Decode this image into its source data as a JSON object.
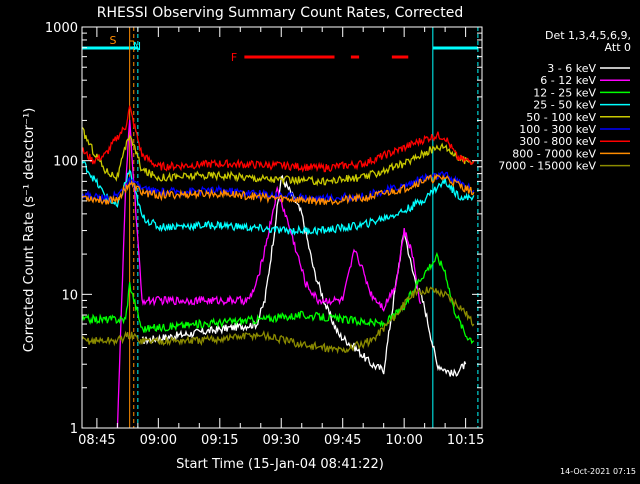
{
  "chart_data": {
    "type": "line",
    "title": "RHESSI Observing Summary Count Rates, Corrected",
    "xlabel": "Start Time (15-Jan-04 08:41:22)",
    "ylabel": "Corrected Count Rate (s⁻¹ detector⁻¹)",
    "y_scale": "log",
    "ylim": [
      1,
      1000
    ],
    "xlim": [
      "08:41:22",
      "10:19:00"
    ],
    "x_tick_labels": [
      "08:45",
      "09:00",
      "09:15",
      "09:30",
      "09:45",
      "10:00",
      "10:15"
    ],
    "y_tick_labels": [
      "1",
      "10",
      "100",
      "1000"
    ],
    "legend_header": [
      "Det 1,3,4,5,6,9,",
      "Att 0"
    ],
    "legend_position": "right",
    "footer_date": "14-Oct-2021 07:15",
    "markers": {
      "saa_label": "S",
      "night_label": "N",
      "flare_label": "F",
      "saa_window": [
        "08:53:00",
        "08:54:00"
      ],
      "night_windows": [
        [
          "08:41:22",
          "08:55:00"
        ],
        [
          "10:07:00",
          "10:18:00"
        ]
      ],
      "flare_segments": [
        [
          "09:21:00",
          "09:43:00"
        ],
        [
          "09:47:00",
          "09:49:00"
        ],
        [
          "09:57:00",
          "10:01:00"
        ]
      ]
    },
    "series": [
      {
        "name": "3 - 6 keV",
        "color": "#ffffff",
        "x": [
          "08:56:00",
          "09:24:00",
          "09:26:00",
          "09:28:00",
          "09:30:00",
          "09:32:00",
          "09:35:00",
          "09:38:00",
          "09:41:00",
          "09:44:00",
          "09:48:00",
          "09:52:00",
          "09:55:00",
          "09:58:00",
          "10:00:00",
          "10:02:00",
          "10:05:00",
          "10:08:00",
          "10:12:00",
          "10:15:00"
        ],
        "y": [
          4.5,
          6,
          9,
          25,
          75,
          60,
          40,
          15,
          8,
          5,
          4,
          3,
          2.7,
          12,
          30,
          15,
          8,
          3,
          2.5,
          3
        ]
      },
      {
        "name": "6 - 12 keV",
        "color": "#ff00ff",
        "x": [
          "08:50:00",
          "08:52:00",
          "08:53:00",
          "08:56:00",
          "09:10:00",
          "09:22:00",
          "09:24:00",
          "09:27:00",
          "09:29:00",
          "09:31:00",
          "09:33:00",
          "09:36:00",
          "09:39:00",
          "09:42:00",
          "09:45:00",
          "09:48:00",
          "09:52:00",
          "09:55:00",
          "09:58:00",
          "10:00:00",
          "10:02:00",
          "10:04:00"
        ],
        "y": [
          1,
          60,
          200,
          9,
          9,
          9,
          12,
          30,
          60,
          40,
          25,
          12,
          9,
          9,
          9,
          22,
          10,
          8,
          12,
          30,
          20,
          8.5
        ]
      },
      {
        "name": "12 - 25 keV",
        "color": "#00ff00",
        "x": [
          "08:41:22",
          "08:52:00",
          "08:53:00",
          "08:56:00",
          "09:10:00",
          "09:25:00",
          "09:35:00",
          "09:45:00",
          "09:55:00",
          "10:00:00",
          "10:03:00",
          "10:06:00",
          "10:08:00",
          "10:10:00",
          "10:12:00",
          "10:15:00",
          "10:17:00"
        ],
        "y": [
          6.5,
          6.5,
          12,
          5.5,
          6,
          6.5,
          7,
          6.5,
          6,
          8,
          12,
          16,
          19,
          15,
          8,
          5,
          4.5
        ]
      },
      {
        "name": "25 - 50 keV",
        "color": "#00ffff",
        "x": [
          "08:41:22",
          "08:44:00",
          "08:47:00",
          "08:50:00",
          "08:53:00",
          "08:56:00",
          "09:00:00",
          "09:15:00",
          "09:30:00",
          "09:40:00",
          "09:50:00",
          "10:00:00",
          "10:05:00",
          "10:08:00",
          "10:10:00",
          "10:13:00",
          "10:15:00",
          "10:17:00"
        ],
        "y": [
          100,
          75,
          55,
          45,
          85,
          38,
          32,
          33,
          30,
          30,
          33,
          42,
          52,
          63,
          70,
          56,
          52,
          55
        ]
      },
      {
        "name": "50 - 100 keV",
        "color": "#c8c800",
        "x": [
          "08:41:22",
          "08:44:00",
          "08:47:00",
          "08:50:00",
          "08:53:00",
          "08:56:00",
          "09:00:00",
          "09:15:00",
          "09:30:00",
          "09:40:00",
          "09:50:00",
          "10:00:00",
          "10:05:00",
          "10:08:00",
          "10:10:00",
          "10:13:00",
          "10:15:00",
          "10:17:00"
        ],
        "y": [
          170,
          120,
          85,
          75,
          160,
          85,
          75,
          78,
          72,
          70,
          75,
          95,
          115,
          125,
          130,
          105,
          100,
          100
        ]
      },
      {
        "name": "100 - 300 keV",
        "color": "#0000ff",
        "x": [
          "08:41:22",
          "08:47:00",
          "08:50:00",
          "08:53:00",
          "08:56:00",
          "09:00:00",
          "09:15:00",
          "09:30:00",
          "09:40:00",
          "09:50:00",
          "10:00:00",
          "10:05:00",
          "10:10:00",
          "10:15:00",
          "10:17:00"
        ],
        "y": [
          56,
          52,
          55,
          70,
          62,
          58,
          60,
          55,
          52,
          54,
          65,
          75,
          78,
          65,
          60
        ]
      },
      {
        "name": "300 - 800 keV",
        "color": "#ff0000",
        "x": [
          "08:41:22",
          "08:44:00",
          "08:47:00",
          "08:50:00",
          "08:52:00",
          "08:53:00",
          "08:56:00",
          "09:00:00",
          "09:15:00",
          "09:30:00",
          "09:40:00",
          "09:50:00",
          "10:00:00",
          "10:05:00",
          "10:08:00",
          "10:10:00",
          "10:13:00",
          "10:15:00",
          "10:17:00"
        ],
        "y": [
          120,
          100,
          110,
          150,
          180,
          250,
          110,
          90,
          95,
          92,
          88,
          95,
          125,
          145,
          155,
          150,
          105,
          100,
          100
        ]
      },
      {
        "name": "800 - 7000 keV",
        "color": "#ff8c00",
        "x": [
          "08:41:22",
          "08:47:00",
          "08:50:00",
          "08:53:00",
          "08:56:00",
          "09:00:00",
          "09:15:00",
          "09:30:00",
          "09:40:00",
          "09:50:00",
          "10:00:00",
          "10:05:00",
          "10:10:00",
          "10:15:00",
          "10:17:00"
        ],
        "y": [
          54,
          50,
          52,
          68,
          58,
          55,
          57,
          52,
          50,
          52,
          62,
          72,
          75,
          62,
          58
        ]
      },
      {
        "name": "7000 - 15000 keV",
        "color": "#8b8b00",
        "x": [
          "08:41:22",
          "08:50:00",
          "08:53:00",
          "08:56:00",
          "09:10:00",
          "09:25:00",
          "09:35:00",
          "09:45:00",
          "09:52:00",
          "09:58:00",
          "10:02:00",
          "10:06:00",
          "10:10:00",
          "10:14:00",
          "10:17:00"
        ],
        "y": [
          4.5,
          4.5,
          5,
          4.5,
          4.5,
          5,
          4.2,
          3.8,
          4.5,
          7,
          10,
          11,
          10,
          8,
          6
        ]
      }
    ]
  }
}
